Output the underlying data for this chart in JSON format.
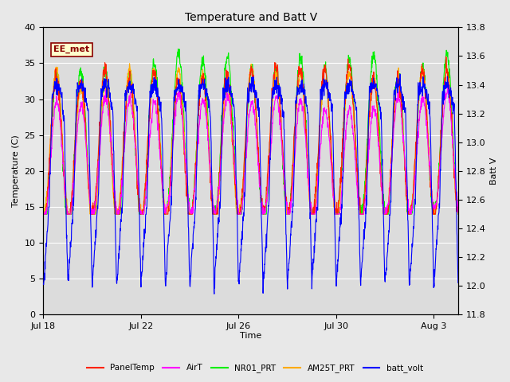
{
  "title": "Temperature and Batt V",
  "xlabel": "Time",
  "ylabel_left": "Temperature (C)",
  "ylabel_right": "Batt V",
  "annotation_text": "EE_met",
  "ylim_left": [
    0,
    40
  ],
  "ylim_right": [
    11.8,
    13.8
  ],
  "xtick_labels": [
    "Jul 18",
    "Jul 22",
    "Jul 26",
    "Jul 30",
    "Aug 3"
  ],
  "xtick_positions": [
    0,
    4,
    8,
    12,
    16
  ],
  "legend_entries": [
    {
      "label": "PanelTemp",
      "color": "#ff2200"
    },
    {
      "label": "AirT",
      "color": "#ff00ff"
    },
    {
      "label": "NR01_PRT",
      "color": "#00ee00"
    },
    {
      "label": "AM25T_PRT",
      "color": "#ffaa00"
    },
    {
      "label": "batt_volt",
      "color": "#0000ff"
    }
  ],
  "fig_bg_color": "#e8e8e8",
  "plot_bg_color": "#dcdcdc",
  "grid_color": "#ffffff",
  "num_days": 17,
  "samples_per_day": 96,
  "annotation_facecolor": "#ffffcc",
  "annotation_edgecolor": "#8b0000",
  "annotation_textcolor": "#8b0000",
  "yticks_left": [
    0,
    5,
    10,
    15,
    20,
    25,
    30,
    35,
    40
  ],
  "yticks_right": [
    11.8,
    12.0,
    12.2,
    12.4,
    12.6,
    12.8,
    13.0,
    13.2,
    13.4,
    13.6,
    13.8
  ]
}
